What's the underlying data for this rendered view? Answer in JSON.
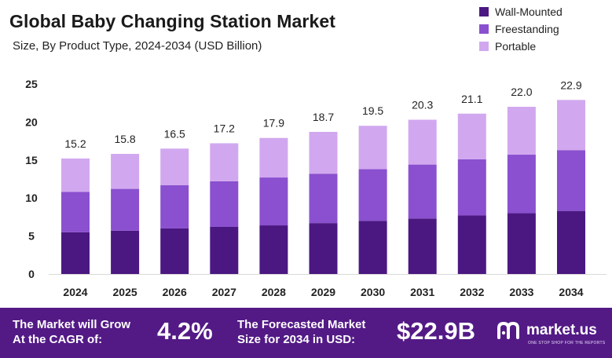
{
  "header": {
    "title": "Global Baby Changing Station Market",
    "subtitle": "Size, By Product Type, 2024-2034 (USD Billion)"
  },
  "colors": {
    "wall": "#4b1882",
    "free": "#8a50cf",
    "port": "#d1a8ef",
    "banner": "#531a86"
  },
  "chart_data": {
    "type": "bar",
    "stacked": true,
    "title": "Global Baby Changing Station Market",
    "subtitle": "Size, By Product Type, 2024-2034 (USD Billion)",
    "categories": [
      "2024",
      "2025",
      "2026",
      "2027",
      "2028",
      "2029",
      "2030",
      "2031",
      "2032",
      "2033",
      "2034"
    ],
    "series": [
      {
        "name": "Wall-Mounted",
        "values": [
          5.5,
          5.7,
          6.0,
          6.2,
          6.4,
          6.7,
          7.0,
          7.3,
          7.7,
          8.0,
          8.3
        ]
      },
      {
        "name": "Freestanding",
        "values": [
          5.3,
          5.5,
          5.7,
          6.0,
          6.3,
          6.5,
          6.8,
          7.1,
          7.4,
          7.7,
          8.0
        ]
      },
      {
        "name": "Portable",
        "values": [
          4.4,
          4.6,
          4.8,
          5.0,
          5.2,
          5.5,
          5.7,
          5.9,
          6.0,
          6.3,
          6.6
        ]
      }
    ],
    "totals": [
      "15.2",
      "15.8",
      "16.5",
      "17.2",
      "17.9",
      "18.7",
      "19.5",
      "20.3",
      "21.1",
      "22.0",
      "22.9"
    ],
    "yticks": [
      0,
      5,
      10,
      15,
      20,
      25
    ],
    "ylim": [
      0,
      25
    ],
    "grid": false,
    "legend_position": "top-right"
  },
  "footer": {
    "cagr_label_line1": "The Market will Grow",
    "cagr_label_line2": "At the CAGR of:",
    "cagr_value": "4.2%",
    "forecast_label_line1": "The Forecasted Market",
    "forecast_label_line2": "Size for 2034 in USD:",
    "forecast_value": "$22.9B",
    "brand": "market.us",
    "brand_tagline": "ONE STOP SHOP FOR THE REPORTS"
  }
}
